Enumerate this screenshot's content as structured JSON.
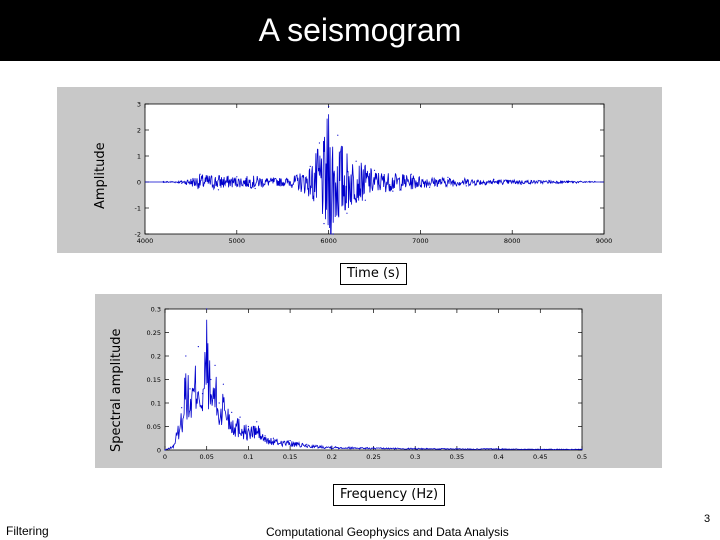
{
  "slide": {
    "title": "A seismogram",
    "footer_left": "Filtering",
    "footer_center": "Computational Geophysics and Data Analysis",
    "page_number": "3"
  },
  "colors": {
    "title_bar": "#000000",
    "title_text": "#ffffff",
    "panel_bg": "#c8c8c8",
    "trace": "#0000cc"
  },
  "chart_data": [
    {
      "type": "line",
      "title": "",
      "xlabel": "Time (s)",
      "ylabel": "Amplitude",
      "xlim": [
        4000,
        9000
      ],
      "ylim": [
        -2,
        3
      ],
      "x_ticks": [
        4000,
        5000,
        6000,
        7000,
        8000,
        9000
      ],
      "x_tick_labels": [
        "4000",
        "5000",
        "6000",
        "7000",
        "8000",
        "9000"
      ],
      "y_ticks": [
        -2,
        -1,
        0,
        1,
        2,
        3
      ],
      "y_tick_labels": [
        "-2",
        "-1",
        "0",
        "1",
        "2",
        "3"
      ],
      "grid": false,
      "series": [
        {
          "x": [
            4200,
            4400,
            4600,
            4800,
            5000,
            5200,
            5400,
            5600,
            5800,
            5900,
            5950,
            6000,
            6050,
            6100,
            6200,
            6300,
            6400,
            6500,
            6700,
            6900,
            7100,
            7300,
            7500,
            7800,
            8100,
            8400,
            8700,
            8900
          ],
          "y": [
            0.02,
            -0.05,
            0.3,
            -0.3,
            0.2,
            -0.25,
            0.15,
            -0.2,
            0.6,
            1.5,
            -1.6,
            2.9,
            -2.1,
            1.8,
            -1.2,
            0.8,
            -0.7,
            0.45,
            -0.35,
            0.3,
            -0.2,
            0.18,
            -0.15,
            0.1,
            -0.08,
            0.06,
            -0.04,
            0.02
          ]
        }
      ]
    },
    {
      "type": "line",
      "title": "",
      "xlabel": "Frequency (Hz)",
      "ylabel": "Spectral amplitude",
      "xlim": [
        0,
        0.5
      ],
      "ylim": [
        0,
        0.3
      ],
      "x_ticks": [
        0,
        0.05,
        0.1,
        0.15,
        0.2,
        0.25,
        0.3,
        0.35,
        0.4,
        0.45,
        0.5
      ],
      "x_tick_labels": [
        "0",
        "0.05",
        "0.1",
        "0.15",
        "0.2",
        "0.25",
        "0.3",
        "0.35",
        "0.4",
        "0.45",
        "0.5"
      ],
      "y_ticks": [
        0,
        0.05,
        0.1,
        0.15,
        0.2,
        0.25,
        0.3
      ],
      "y_tick_labels": [
        "0",
        "0.05",
        "0.1",
        "0.15",
        "0.2",
        "0.25",
        "0.3"
      ],
      "grid": false,
      "series": [
        {
          "x": [
            0,
            0.01,
            0.02,
            0.025,
            0.03,
            0.04,
            0.045,
            0.05,
            0.055,
            0.06,
            0.065,
            0.07,
            0.08,
            0.09,
            0.1,
            0.11,
            0.12,
            0.13,
            0.15,
            0.17,
            0.2,
            0.25,
            0.3,
            0.35,
            0.4,
            0.45,
            0.5
          ],
          "y": [
            0,
            0.01,
            0.09,
            0.2,
            0.13,
            0.22,
            0.12,
            0.3,
            0.15,
            0.18,
            0.1,
            0.14,
            0.08,
            0.07,
            0.05,
            0.06,
            0.03,
            0.025,
            0.02,
            0.012,
            0.008,
            0.005,
            0.004,
            0.003,
            0.003,
            0.002,
            0.002
          ]
        }
      ]
    }
  ]
}
